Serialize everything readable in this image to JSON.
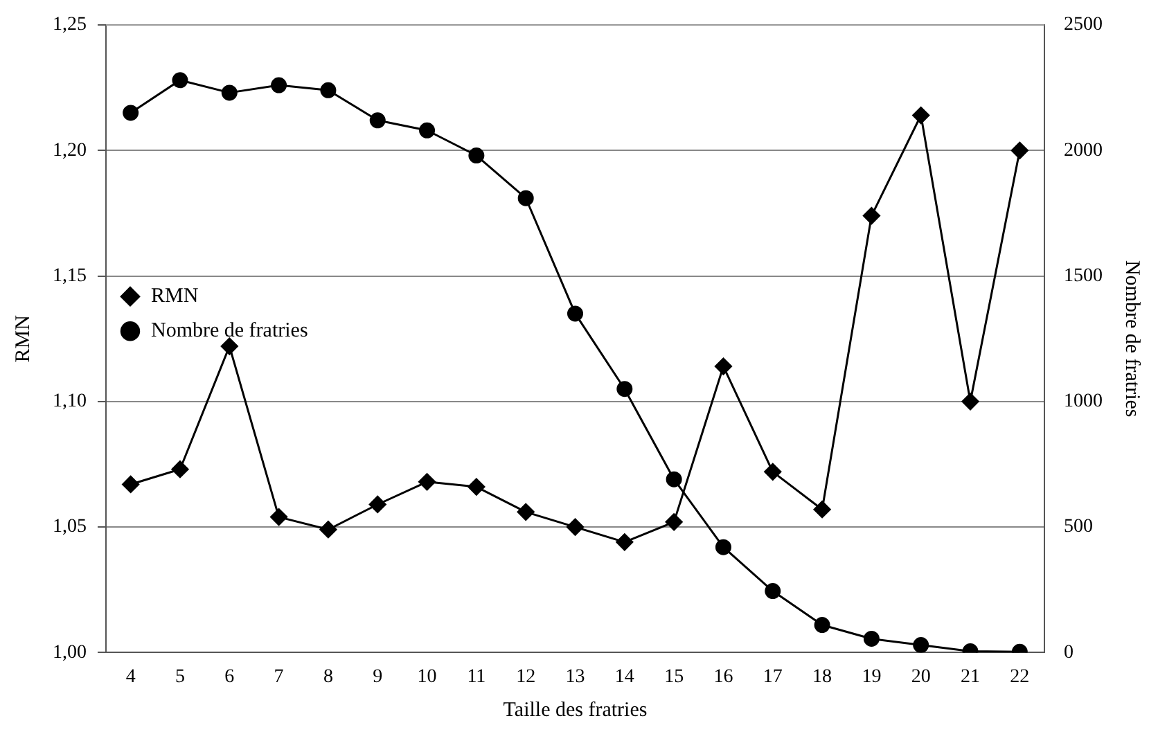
{
  "chart_data": {
    "type": "line",
    "xlabel": "Taille des fratries",
    "ylabel": "RMN",
    "y2label": "Nombre de fratries",
    "categories": [
      "4",
      "5",
      "6",
      "7",
      "8",
      "9",
      "10",
      "11",
      "12",
      "13",
      "14",
      "15",
      "16",
      "17",
      "18",
      "19",
      "20",
      "21",
      "22"
    ],
    "series": [
      {
        "name": "RMN",
        "color": "#000000",
        "marker": "diamond",
        "values": [
          1.067,
          1.073,
          1.122,
          1.054,
          1.049,
          1.059,
          1.068,
          1.066,
          1.056,
          1.05,
          1.044,
          1.052,
          1.114,
          1.072,
          1.057,
          1.174,
          1.214,
          1.1,
          1.2
        ]
      },
      {
        "name": "Nombre de fratries",
        "color": "#000000",
        "marker": "circle",
        "axis": "y2",
        "values": [
          2150,
          2280,
          2230,
          2260,
          2240,
          2120,
          2080,
          1980,
          1810,
          1350,
          1050,
          690,
          420,
          245,
          110,
          55,
          30,
          5,
          3
        ]
      }
    ],
    "ylim": [
      1.0,
      1.25
    ],
    "yticks": [
      {
        "value": 1.0,
        "label": "1,00"
      },
      {
        "value": 1.05,
        "label": "1,05"
      },
      {
        "value": 1.1,
        "label": "1,10"
      },
      {
        "value": 1.15,
        "label": "1,15"
      },
      {
        "value": 1.2,
        "label": "1,20"
      },
      {
        "value": 1.25,
        "label": "1,25"
      }
    ],
    "y2lim": [
      0,
      2500
    ],
    "y2ticks": [
      0,
      500,
      1000,
      1500,
      2000,
      2500
    ],
    "grid": "y",
    "legend": "top",
    "line_style": "solid"
  }
}
